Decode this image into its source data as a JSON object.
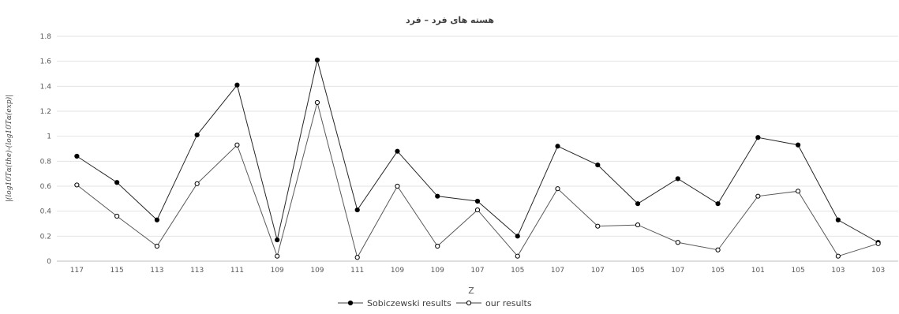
{
  "chart_data": {
    "type": "line",
    "title": "هسته های فرد – فرد",
    "xlabel": "Z",
    "ylabel": "|(log10Tα(the)-(log10Tα(exp)|",
    "categories": [
      "117",
      "115",
      "113",
      "113",
      "111",
      "109",
      "109",
      "111",
      "109",
      "109",
      "107",
      "105",
      "107",
      "107",
      "105",
      "107",
      "105",
      "101",
      "105",
      "103",
      "103"
    ],
    "ylim": [
      0,
      1.8
    ],
    "yticks": [
      "0",
      "0.2",
      "0.4",
      "0.6",
      "0.8",
      "1",
      "1.2",
      "1.4",
      "1.6",
      "1.8"
    ],
    "grid": true,
    "legend_position": "bottom",
    "series": [
      {
        "name": "Sobiczewski results",
        "marker": "filled-circle",
        "color": "#000000",
        "values": [
          0.84,
          0.63,
          0.33,
          1.01,
          1.41,
          0.17,
          1.61,
          0.41,
          0.88,
          0.52,
          0.48,
          0.2,
          0.92,
          0.77,
          0.46,
          0.66,
          0.46,
          0.99,
          0.93,
          0.33,
          0.15
        ]
      },
      {
        "name": "our results",
        "marker": "hollow-circle",
        "color": "#000000",
        "values": [
          0.61,
          0.36,
          0.12,
          0.62,
          0.93,
          0.04,
          1.27,
          0.03,
          0.6,
          0.12,
          0.41,
          0.04,
          0.58,
          0.28,
          0.29,
          0.15,
          0.09,
          0.52,
          0.56,
          0.04,
          0.14
        ]
      }
    ]
  }
}
